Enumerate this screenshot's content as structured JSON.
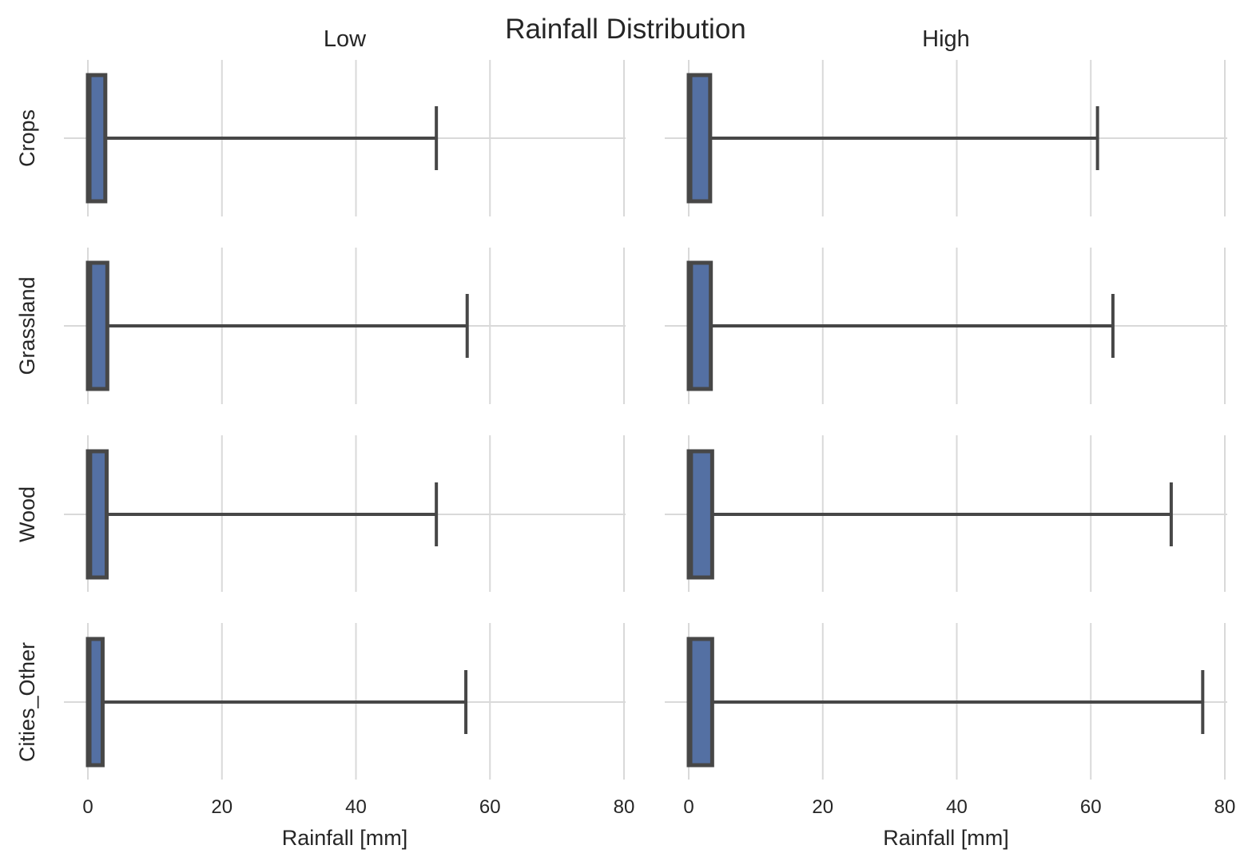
{
  "chart_data": {
    "type": "boxplot",
    "title": "Rainfall Distribution",
    "xlabel": "Rainfall [mm]",
    "xlim": [
      -2,
      80
    ],
    "xticks": [
      0,
      20,
      40,
      60,
      80
    ],
    "grid": true,
    "columns": [
      "Low",
      "High"
    ],
    "rows": [
      "Crops",
      "Grassland",
      "Wood",
      "Cities_Other"
    ],
    "box_color": "#5470a3",
    "line_color": "#474747",
    "grid_color": "#d9d9d9",
    "boxes": {
      "Low": [
        {
          "category": "Crops",
          "whisker_low": 0,
          "q1": 0,
          "median": 0.3,
          "q3": 2.6,
          "whisker_high": 52.0
        },
        {
          "category": "Grassland",
          "whisker_low": 0,
          "q1": 0,
          "median": 0.4,
          "q3": 2.9,
          "whisker_high": 56.6
        },
        {
          "category": "Wood",
          "whisker_low": 0,
          "q1": 0,
          "median": 0.4,
          "q3": 2.8,
          "whisker_high": 52.0
        },
        {
          "category": "Cities_Other",
          "whisker_low": 0,
          "q1": 0,
          "median": 0.3,
          "q3": 2.2,
          "whisker_high": 56.4
        }
      ],
      "High": [
        {
          "category": "Crops",
          "whisker_low": 0,
          "q1": 0,
          "median": 0.3,
          "q3": 3.2,
          "whisker_high": 61.0
        },
        {
          "category": "Grassland",
          "whisker_low": 0,
          "q1": 0,
          "median": 0.4,
          "q3": 3.3,
          "whisker_high": 63.3
        },
        {
          "category": "Wood",
          "whisker_low": 0,
          "q1": 0,
          "median": 0.4,
          "q3": 3.5,
          "whisker_high": 72.0
        },
        {
          "category": "Cities_Other",
          "whisker_low": 0,
          "q1": 0,
          "median": 0.3,
          "q3": 3.5,
          "whisker_high": 76.7
        }
      ]
    }
  }
}
